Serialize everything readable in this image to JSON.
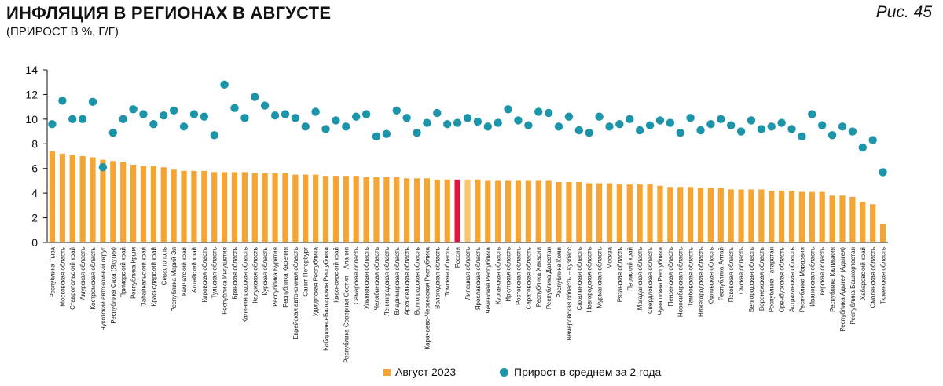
{
  "header": {
    "title": "ИНФЛЯЦИЯ В РЕГИОНАХ В АВГУСТЕ",
    "subtitle": "(ПРИРОСТ В %, Г/Г)",
    "figure_ref": "Рис. 45"
  },
  "legend": {
    "bar_label": "Август 2023",
    "dot_label": "Прирост в среднем за 2 года"
  },
  "colors": {
    "bar": "#F5A534",
    "bar_highlight": "#E0143C",
    "bar_light": "#F9C56E",
    "dot": "#1C95AA"
  },
  "chart_data": {
    "type": "bar",
    "ylim": [
      0,
      14
    ],
    "yticks": [
      0,
      2,
      4,
      6,
      8,
      10,
      12,
      14
    ],
    "grid": false,
    "legend_position": "bottom",
    "highlight_category": "Россия",
    "light_category": "Липецкая область",
    "categories": [
      "Республика Тыва",
      "Московская область",
      "Ставропольский край",
      "Амурская область",
      "Костромская область",
      "Чукотский автономный округ",
      "Республика Саха (Якутия)",
      "Приморский край",
      "Республика Крым",
      "Забайкальский край",
      "Краснодарский край",
      "Севастополь",
      "Республика Марий Эл",
      "Камчатский край",
      "Алтайский край",
      "Кировская область",
      "Тульская область",
      "Республика Ингушетия",
      "Брянская область",
      "Калининградская область",
      "Калужская область",
      "Курская область",
      "Республика Бурятия",
      "Республика Карелия",
      "Еврейская автономная область",
      "Санкт-Петербург",
      "Удмуртская Республика",
      "Кабардино-Балкарская Республика",
      "Красноярский край",
      "Республика Северная Осетия – Алания",
      "Самарская область",
      "Ульяновская область",
      "Челябинская область",
      "Ленинградская область",
      "Владимирская область",
      "Архангельская область",
      "Волгоградская область",
      "Карачаево-Черкесская Республика",
      "Вологодская область",
      "Томская область",
      "Россия",
      "Липецкая область",
      "Ярославская область",
      "Чеченская Республика",
      "Курганская область",
      "Иркутская область",
      "Ростовская область",
      "Саратовская область",
      "Республика Хакасия",
      "Республика Дагестан",
      "Республика Коми",
      "Кемеровская область – Кузбасс",
      "Сахалинская область",
      "Новгородская область",
      "Мурманская область",
      "Москва",
      "Рязанская область",
      "Пермский край",
      "Магаданская область",
      "Свердловская область",
      "Чувашская Республика",
      "Пензенская область",
      "Новосибирская область",
      "Тамбовская область",
      "Нижегородская область",
      "Орловская область",
      "Республика Алтай",
      "Псковская область",
      "Омская область",
      "Белгородская область",
      "Воронежская область",
      "Республика Татарстан",
      "Оренбургская область",
      "Астраханская область",
      "Республика Мордовия",
      "Ивановская область",
      "Тверская область",
      "Республика Калмыкия",
      "Республика Адыгея (Адыгея)",
      "Республика Башкортостан",
      "Хабаровский край",
      "Смоленская область",
      "Тюменская область"
    ],
    "series": [
      {
        "name": "Август 2023",
        "type": "bar",
        "values": [
          7.4,
          7.2,
          7.1,
          7.0,
          6.9,
          6.7,
          6.6,
          6.5,
          6.3,
          6.2,
          6.2,
          6.1,
          5.9,
          5.8,
          5.8,
          5.8,
          5.7,
          5.7,
          5.7,
          5.7,
          5.6,
          5.6,
          5.6,
          5.6,
          5.5,
          5.5,
          5.5,
          5.4,
          5.4,
          5.4,
          5.4,
          5.3,
          5.3,
          5.3,
          5.3,
          5.2,
          5.2,
          5.2,
          5.1,
          5.1,
          5.1,
          5.1,
          5.1,
          5.0,
          5.0,
          5.0,
          5.0,
          5.0,
          5.0,
          5.0,
          4.9,
          4.9,
          4.9,
          4.8,
          4.8,
          4.8,
          4.7,
          4.7,
          4.7,
          4.7,
          4.6,
          4.5,
          4.5,
          4.5,
          4.4,
          4.4,
          4.4,
          4.3,
          4.3,
          4.3,
          4.3,
          4.2,
          4.2,
          4.2,
          4.1,
          4.1,
          4.1,
          3.8,
          3.8,
          3.7,
          3.3,
          3.1,
          1.5
        ]
      },
      {
        "name": "Прирост в среднем за 2 года",
        "type": "scatter",
        "values": [
          9.6,
          11.5,
          10.0,
          10.0,
          11.4,
          6.1,
          8.9,
          10.0,
          10.8,
          10.4,
          9.6,
          10.3,
          10.7,
          9.4,
          10.4,
          10.2,
          8.7,
          12.8,
          10.9,
          10.1,
          11.8,
          11.1,
          10.3,
          10.4,
          10.1,
          9.4,
          10.6,
          9.2,
          9.9,
          9.4,
          10.2,
          10.4,
          8.6,
          8.8,
          10.7,
          10.1,
          8.9,
          9.7,
          10.5,
          9.6,
          9.7,
          10.1,
          9.8,
          9.4,
          9.7,
          10.8,
          9.9,
          9.5,
          10.6,
          10.5,
          9.4,
          10.2,
          9.1,
          8.9,
          10.2,
          9.4,
          9.6,
          10.0,
          9.1,
          9.5,
          9.9,
          9.7,
          8.9,
          10.1,
          9.1,
          9.6,
          10.0,
          9.5,
          9.0,
          9.9,
          9.2,
          9.4,
          9.7,
          9.2,
          8.6,
          10.4,
          9.5,
          8.7,
          9.4,
          9.0,
          7.7,
          8.3,
          5.7
        ]
      }
    ]
  }
}
